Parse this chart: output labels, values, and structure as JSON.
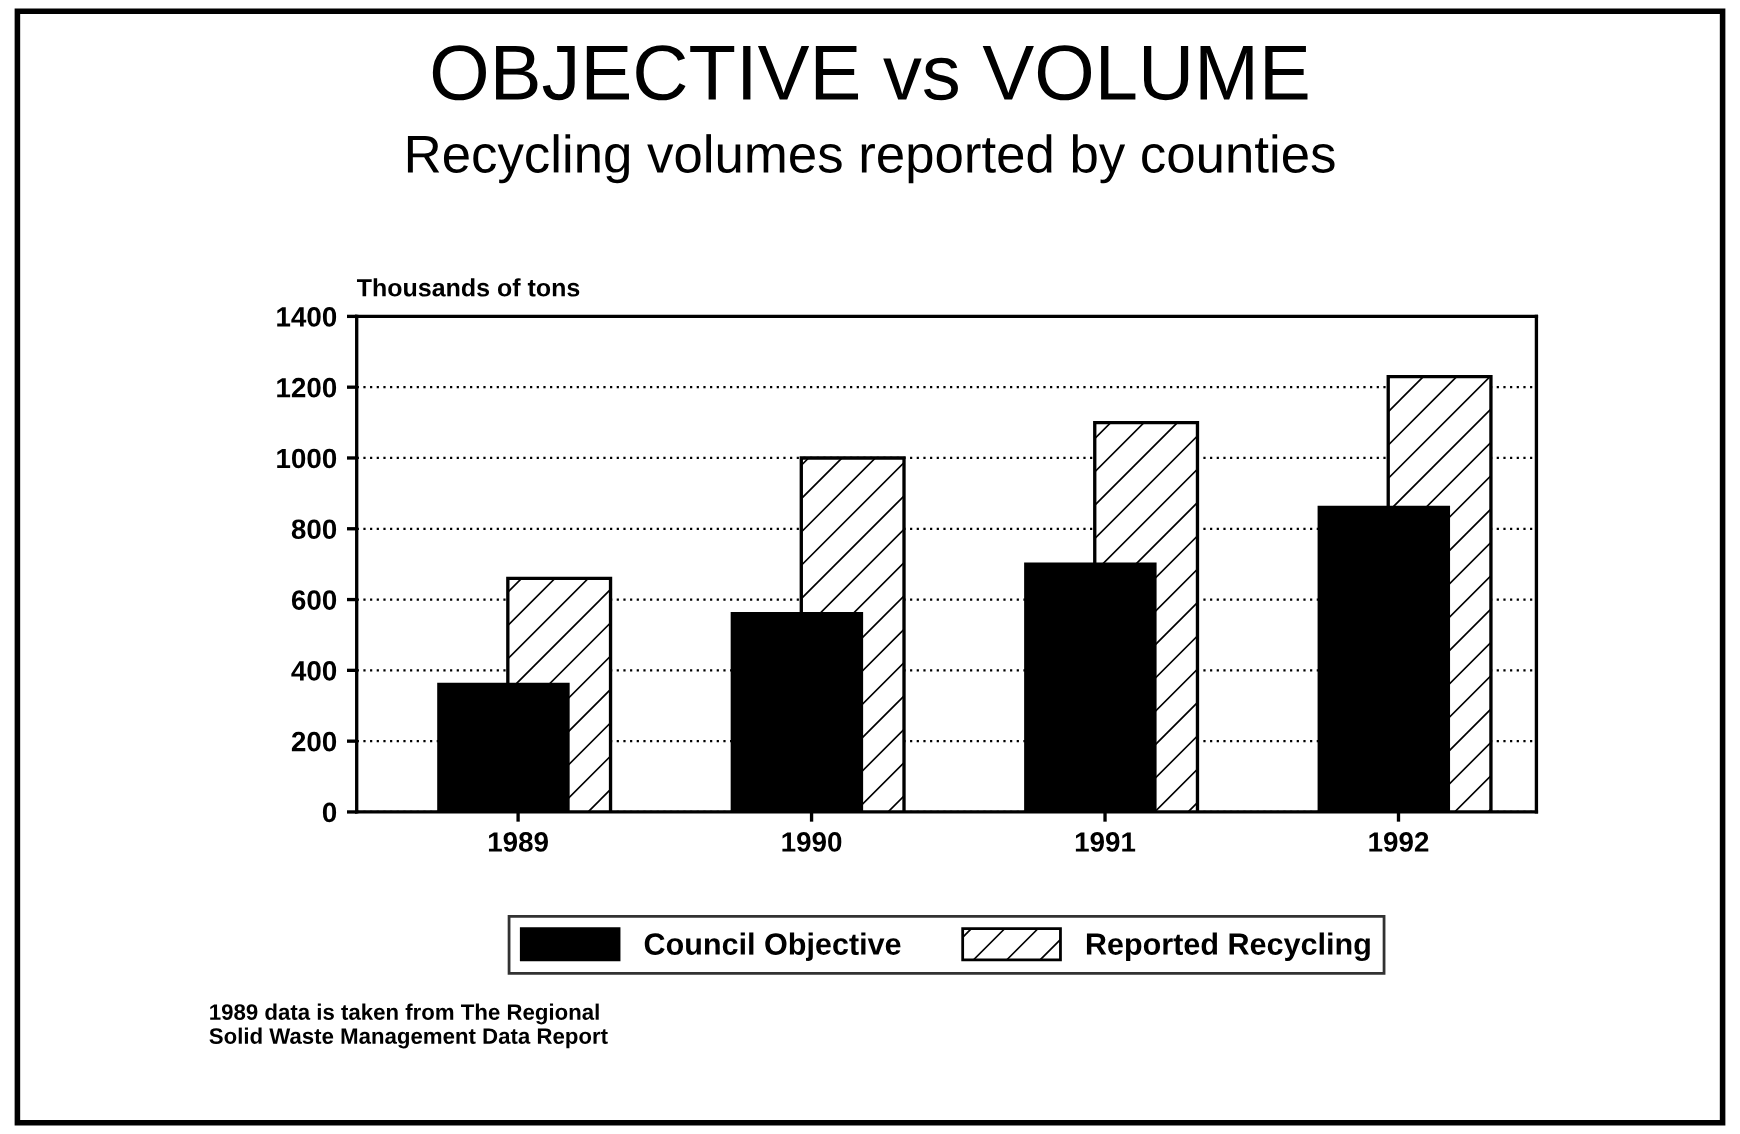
{
  "chart_data": {
    "type": "bar",
    "title": "OBJECTIVE vs VOLUME",
    "subtitle": "Recycling volumes reported by counties",
    "ylabel": "Thousands of tons",
    "categories": [
      "1989",
      "1990",
      "1991",
      "1992"
    ],
    "series": [
      {
        "name": "Council Objective",
        "color": "#000000",
        "values": [
          360,
          560,
          700,
          860
        ]
      },
      {
        "name": "Reported Recycling",
        "color": "#000000",
        "values": [
          660,
          1000,
          1100,
          1230
        ]
      }
    ],
    "ylim": [
      0,
      1400
    ],
    "yticks": [
      0,
      200,
      400,
      600,
      800,
      1000,
      1200,
      1400
    ],
    "grid": "y",
    "legend": "bottom",
    "annotations": [
      "1989 data is taken from The Regional\nSolid Waste Management Data Report"
    ]
  }
}
